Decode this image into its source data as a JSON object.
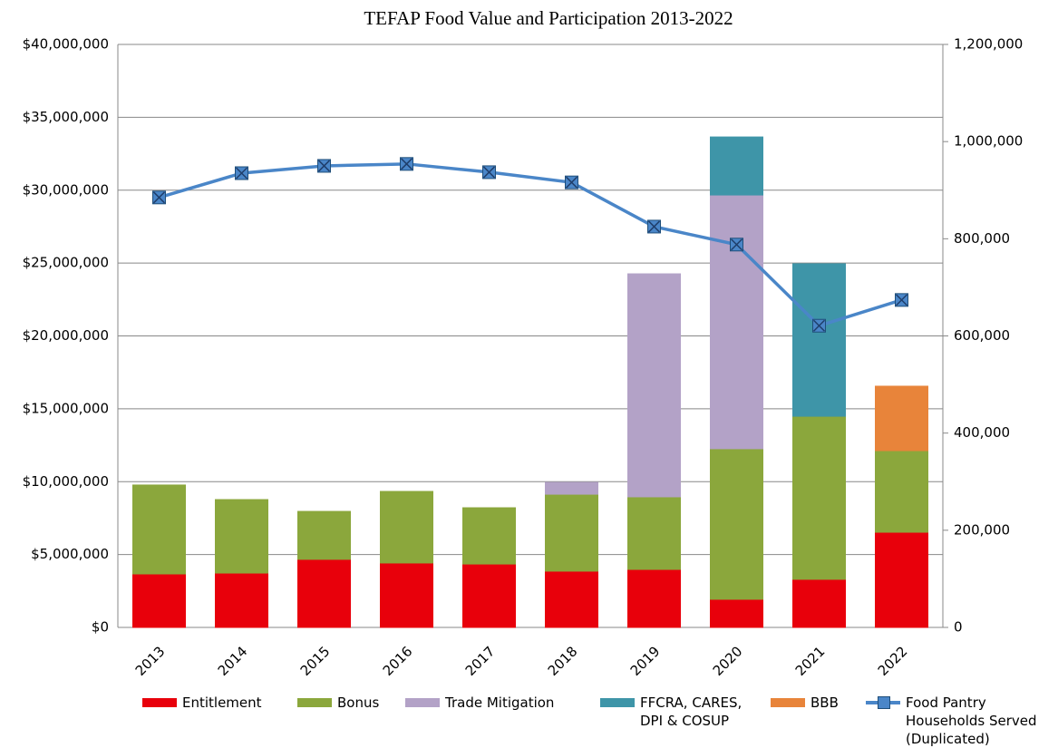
{
  "chart_data": {
    "type": "bar",
    "title": "TEFAP Food Value and Participation 2013-2022",
    "categories": [
      "2013",
      "2014",
      "2015",
      "2016",
      "2017",
      "2018",
      "2019",
      "2020",
      "2021",
      "2022"
    ],
    "stacked": true,
    "grid": true,
    "series": [
      {
        "name": "Entitlement",
        "color": "#e8000b",
        "values": [
          3670000,
          3730000,
          4670000,
          4420000,
          4350000,
          3860000,
          3980000,
          1930000,
          3300000,
          6530000
        ]
      },
      {
        "name": "Bonus",
        "color": "#8ba73c",
        "values": [
          6100000,
          5040000,
          3290000,
          4910000,
          3860000,
          5280000,
          4980000,
          10330000,
          11190000,
          5600000
        ]
      },
      {
        "name": "Trade Mitigation",
        "color": "#b3a2c7",
        "values": [
          null,
          null,
          null,
          null,
          null,
          810000,
          15300000,
          17410000,
          null,
          null
        ]
      },
      {
        "name": "FFCRA, CARES, DPI & COSUP",
        "color": "#3e95a8",
        "values": [
          null,
          null,
          null,
          null,
          null,
          null,
          null,
          3980000,
          10460000,
          null
        ]
      },
      {
        "name": "BBB",
        "color": "#e8843a",
        "values": [
          null,
          null,
          null,
          null,
          null,
          null,
          null,
          null,
          null,
          4420000
        ]
      },
      {
        "name": "Food Pantry Households Served (Duplicated)",
        "color": "#4a86c8",
        "type": "line",
        "axis": "y2",
        "values": [
          885000,
          935000,
          950000,
          954000,
          937000,
          916000,
          825000,
          788000,
          621000,
          674000
        ]
      }
    ],
    "ylim": [
      0,
      40000000
    ],
    "yticks": [
      {
        "value": 0,
        "label": "$0"
      },
      {
        "value": 5000000,
        "label": "$5,000,000"
      },
      {
        "value": 10000000,
        "label": "$10,000,000"
      },
      {
        "value": 15000000,
        "label": "$15,000,000"
      },
      {
        "value": 20000000,
        "label": "$20,000,000"
      },
      {
        "value": 25000000,
        "label": "$25,000,000"
      },
      {
        "value": 30000000,
        "label": "$30,000,000"
      },
      {
        "value": 35000000,
        "label": "$35,000,000"
      },
      {
        "value": 40000000,
        "label": "$40,000,000"
      }
    ],
    "y2lim": [
      0,
      1200000
    ],
    "y2ticks": [
      0,
      {
        "value": 200000,
        "label": "200,000"
      },
      {
        "value": 400000,
        "label": "400,000"
      },
      {
        "value": 600000,
        "label": "600,000"
      },
      {
        "value": 800000,
        "label": "800,000"
      },
      {
        "value": 1000000,
        "label": "1,000,000"
      },
      {
        "value": 1200000,
        "label": "1,200,000"
      }
    ]
  }
}
